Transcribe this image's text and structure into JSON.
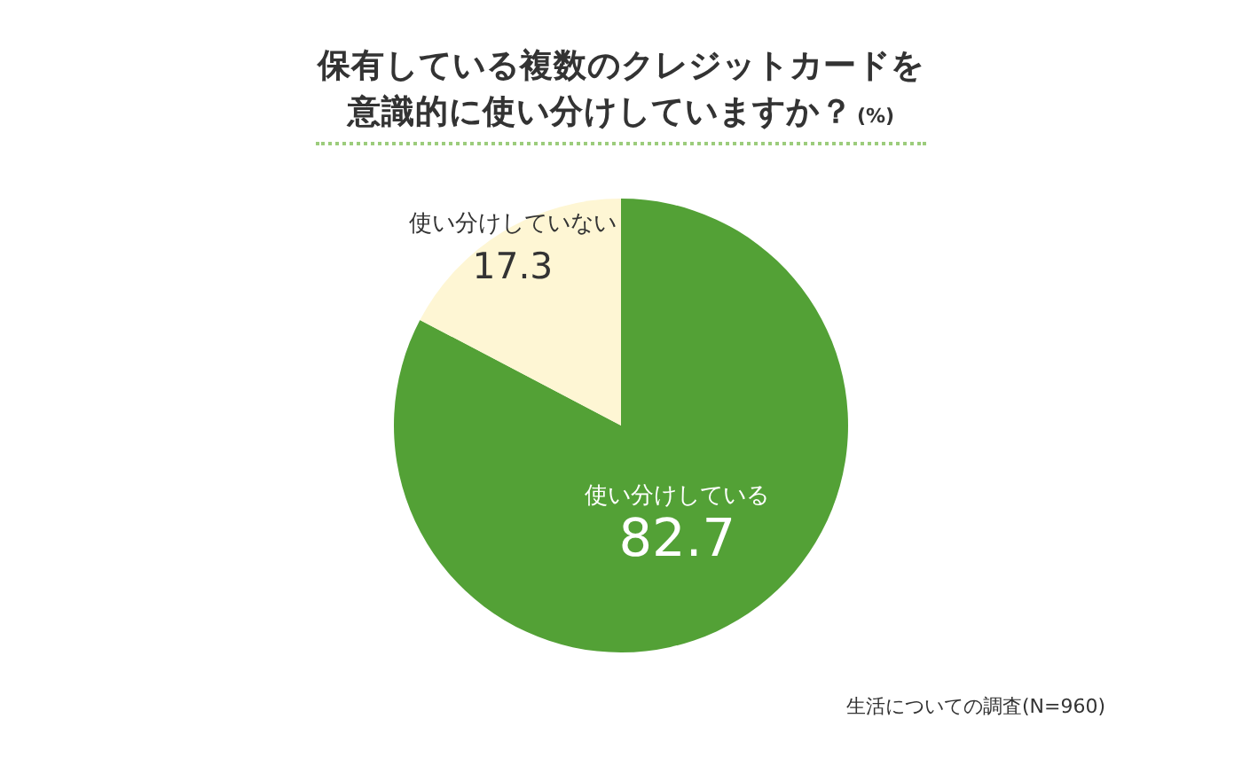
{
  "chart_data": {
    "type": "pie",
    "title": "保有している複数のクレジットカードを意識的に使い分けしていますか？",
    "subtitle": "(%)",
    "categories": [
      "使い分けしている",
      "使い分けしていない"
    ],
    "values": [
      82.7,
      17.3
    ],
    "colors": [
      "#53a136",
      "#fef6d4"
    ],
    "data_labels": true,
    "annotations": [
      "生活についての調査(N=960)"
    ]
  }
}
